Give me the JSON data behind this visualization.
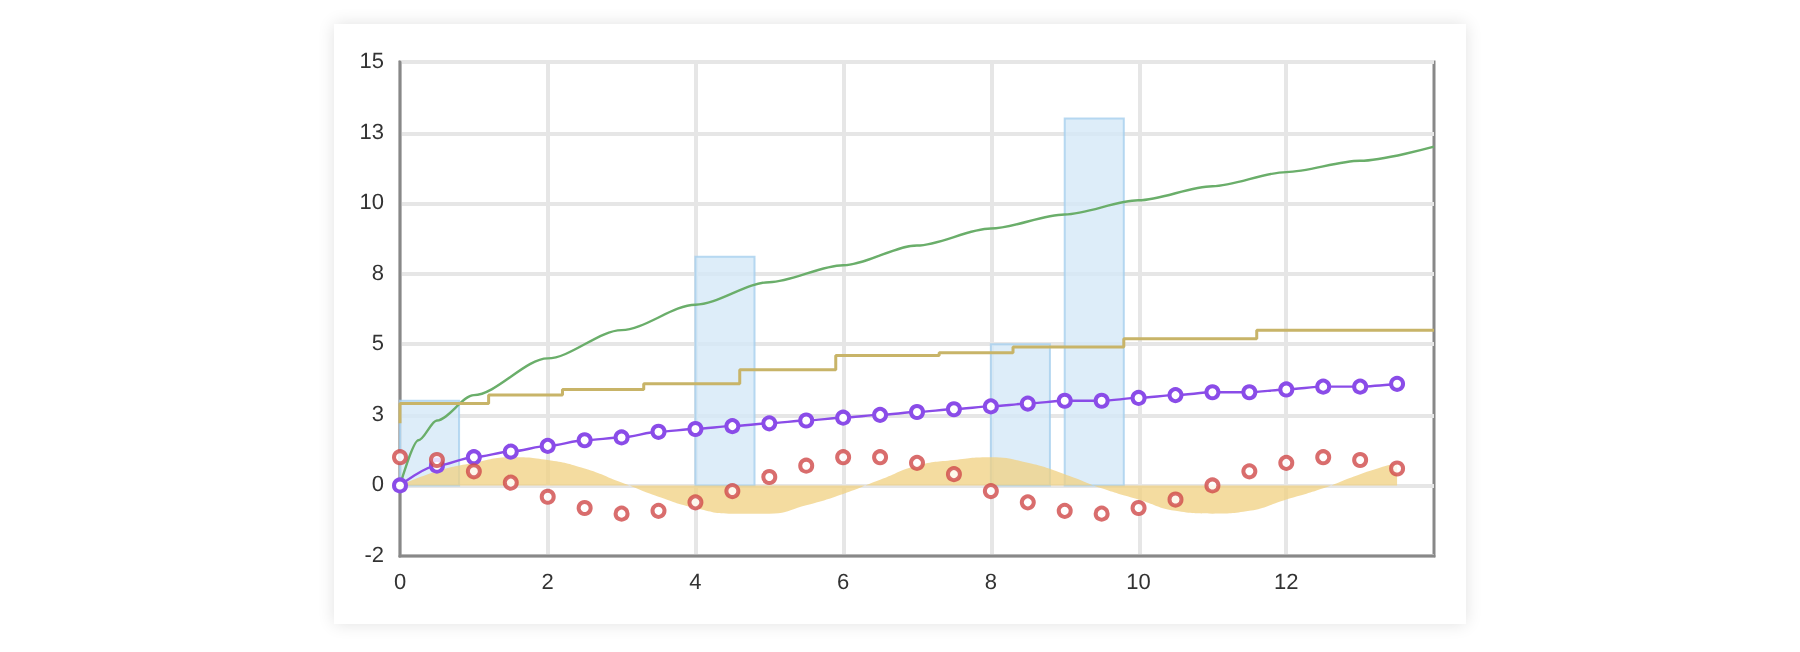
{
  "chart_data": {
    "type": "line",
    "xlim": [
      0,
      14
    ],
    "xticks": [
      0,
      2,
      4,
      6,
      8,
      10,
      12
    ],
    "ylim": [
      -2.5,
      15
    ],
    "yticks": [
      {
        "value": -2.5,
        "label": "-2"
      },
      0,
      {
        "value": 2.5,
        "label": "3"
      },
      5,
      {
        "value": 7.5,
        "label": "8"
      },
      10,
      {
        "value": 12.5,
        "label": "13"
      },
      15
    ],
    "grid": true,
    "series": [
      {
        "type": "bar",
        "color": "#d4e8f8",
        "x": [
          0.4,
          4.4,
          8.4,
          9.4
        ],
        "values": [
          3.0,
          8.1,
          5.0,
          13.0
        ]
      },
      {
        "type": "area",
        "color": "#f0d080",
        "x": [
          0,
          0.5,
          1,
          1.5,
          2,
          2.5,
          3,
          3.5,
          4,
          4.5,
          5,
          5.5,
          6,
          6.5,
          7,
          7.5,
          8,
          8.5,
          9,
          9.5,
          10,
          10.5,
          11,
          11.5,
          12,
          12.5,
          13,
          13.5
        ],
        "values": [
          0,
          0.5,
          0.8,
          1.0,
          0.9,
          0.6,
          0.1,
          -0.4,
          -0.8,
          -1.0,
          -1.0,
          -0.7,
          -0.3,
          0.2,
          0.7,
          0.9,
          1.0,
          0.8,
          0.4,
          -0.1,
          -0.5,
          -0.9,
          -1.0,
          -0.9,
          -0.5,
          -0.1,
          0.4,
          0.8
        ]
      },
      {
        "type": "line",
        "color": "#6aae6a",
        "marker": "none",
        "x": [
          0,
          0.25,
          0.5,
          1,
          2,
          3,
          4,
          5,
          6,
          7,
          8,
          9,
          10,
          11,
          12,
          13,
          14
        ],
        "values": [
          0,
          1.6,
          2.3,
          3.2,
          4.5,
          5.5,
          6.4,
          7.2,
          7.8,
          8.5,
          9.1,
          9.6,
          10.1,
          10.6,
          11.1,
          11.5,
          12.0
        ]
      },
      {
        "type": "step",
        "color": "#c8b468",
        "marker": "none",
        "x": [
          0,
          1.2,
          2.2,
          3.3,
          4.6,
          5.9,
          7.3,
          8.3,
          9.8,
          11.6,
          12.6,
          14
        ],
        "values": [
          2.2,
          2.9,
          3.2,
          3.4,
          3.6,
          4.1,
          4.6,
          4.7,
          4.9,
          5.2,
          5.5,
          5.5
        ]
      },
      {
        "color": "#8a4ce8",
        "marker": "circle",
        "x": [
          0,
          0.5,
          1,
          1.5,
          2,
          2.5,
          3,
          3.5,
          4,
          4.5,
          5,
          5.5,
          6,
          6.5,
          7,
          7.5,
          8,
          8.5,
          9,
          9.5,
          10,
          10.5,
          11,
          11.5,
          12,
          12.5,
          13,
          13.5
        ],
        "values": [
          0,
          0.7,
          1.0,
          1.2,
          1.4,
          1.6,
          1.7,
          1.9,
          2.0,
          2.1,
          2.2,
          2.3,
          2.4,
          2.5,
          2.6,
          2.7,
          2.8,
          2.9,
          3.0,
          3.0,
          3.1,
          3.2,
          3.3,
          3.3,
          3.4,
          3.5,
          3.5,
          3.6
        ]
      },
      {
        "type": "scatter",
        "color": "#d04848",
        "marker": "circle",
        "x": [
          0,
          0.5,
          1,
          1.5,
          2,
          2.5,
          3,
          3.5,
          4,
          4.5,
          5,
          5.5,
          6,
          6.5,
          7,
          7.5,
          8,
          8.5,
          9,
          9.5,
          10,
          10.5,
          11,
          11.5,
          12,
          12.5,
          13,
          13.5
        ],
        "values": [
          1.0,
          0.9,
          0.5,
          0.1,
          -0.4,
          -0.8,
          -1.0,
          -0.9,
          -0.6,
          -0.2,
          0.3,
          0.7,
          1.0,
          1.0,
          0.8,
          0.4,
          -0.2,
          -0.6,
          -0.9,
          -1.0,
          -0.8,
          -0.5,
          0.0,
          0.5,
          0.8,
          1.0,
          0.9,
          0.6
        ]
      }
    ]
  }
}
